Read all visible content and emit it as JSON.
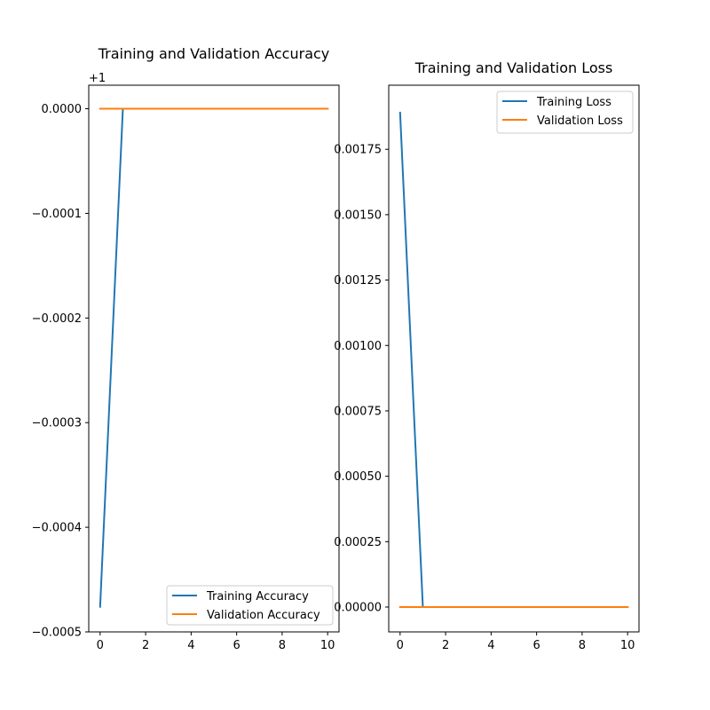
{
  "chart_data": [
    {
      "type": "line",
      "title": "Training and Validation Accuracy",
      "offset_label": "+1",
      "xlabel": "",
      "ylabel": "",
      "xlim": [
        -0.5,
        10.5
      ],
      "ylim": [
        -0.0005,
        2.25e-05
      ],
      "x_ticks": [
        0,
        2,
        4,
        6,
        8,
        10
      ],
      "x_tick_labels": [
        "0",
        "2",
        "4",
        "6",
        "8",
        "10"
      ],
      "y_ticks": [
        0.0,
        -0.0001,
        -0.0002,
        -0.0003,
        -0.0004,
        -0.0005
      ],
      "y_tick_labels": [
        "0.0000",
        "−0.0001",
        "−0.0002",
        "−0.0003",
        "−0.0004",
        "−0.0005"
      ],
      "legend_position": "lower-right",
      "grid": false,
      "series": [
        {
          "name": "Training Accuracy",
          "color": "#1f77b4",
          "x": [
            0,
            1,
            2,
            3,
            4,
            5,
            6,
            7,
            8,
            9,
            10
          ],
          "values": [
            -0.000476,
            0,
            0,
            0,
            0,
            0,
            0,
            0,
            0,
            0,
            0
          ]
        },
        {
          "name": "Validation Accuracy",
          "color": "#ff7f0e",
          "x": [
            0,
            1,
            2,
            3,
            4,
            5,
            6,
            7,
            8,
            9,
            10
          ],
          "values": [
            0,
            0,
            0,
            0,
            0,
            0,
            0,
            0,
            0,
            0,
            0
          ]
        }
      ]
    },
    {
      "type": "line",
      "title": "Training and Validation Loss",
      "xlabel": "",
      "ylabel": "",
      "xlim": [
        -0.5,
        10.5
      ],
      "ylim": [
        -9.5e-05,
        0.001995
      ],
      "x_ticks": [
        0,
        2,
        4,
        6,
        8,
        10
      ],
      "x_tick_labels": [
        "0",
        "2",
        "4",
        "6",
        "8",
        "10"
      ],
      "y_ticks": [
        0.0,
        0.00025,
        0.0005,
        0.00075,
        0.001,
        0.00125,
        0.0015,
        0.00175
      ],
      "y_tick_labels": [
        "0.00000",
        "0.00025",
        "0.00050",
        "0.00075",
        "0.00100",
        "0.00125",
        "0.00150",
        "0.00175"
      ],
      "legend_position": "upper-right",
      "grid": false,
      "series": [
        {
          "name": "Training Loss",
          "color": "#1f77b4",
          "x": [
            0,
            1,
            2,
            3,
            4,
            5,
            6,
            7,
            8,
            9,
            10
          ],
          "values": [
            0.00189,
            5e-07,
            1e-07,
            1e-07,
            1e-07,
            1e-07,
            1e-07,
            1e-07,
            1e-07,
            1e-07,
            1e-07
          ]
        },
        {
          "name": "Validation Loss",
          "color": "#ff7f0e",
          "x": [
            0,
            1,
            2,
            3,
            4,
            5,
            6,
            7,
            8,
            9,
            10
          ],
          "values": [
            1e-07,
            1e-07,
            1e-07,
            1e-07,
            1e-07,
            1e-07,
            1e-07,
            1e-07,
            1e-07,
            1e-07,
            1e-07
          ]
        }
      ]
    }
  ]
}
